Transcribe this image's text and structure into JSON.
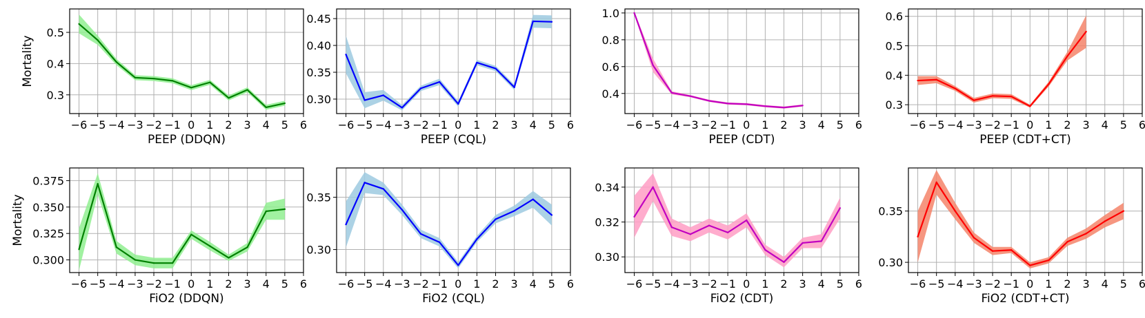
{
  "figure": {
    "ylabel_shared": "Mortality"
  },
  "chart_data": [
    {
      "type": "line",
      "xlabel": "PEEP (DDQN)",
      "ylabel": "Mortality",
      "x": [
        -6,
        -5,
        -4,
        -3,
        -2,
        -1,
        0,
        1,
        2,
        3,
        4,
        5
      ],
      "y": [
        0.527,
        0.475,
        0.405,
        0.355,
        0.352,
        0.345,
        0.323,
        0.34,
        0.29,
        0.316,
        0.26,
        0.273
      ],
      "band": [
        0.03,
        0.015,
        0.01,
        0.008,
        0.008,
        0.008,
        0.008,
        0.008,
        0.008,
        0.008,
        0.008,
        0.008
      ],
      "xlim": [
        -6.5,
        6
      ],
      "ylim": [
        0.24,
        0.575
      ],
      "xticks": [
        -6,
        -5,
        -4,
        -3,
        -2,
        -1,
        0,
        1,
        2,
        3,
        4,
        5,
        6
      ],
      "yticks": [
        0.3,
        0.4,
        0.5
      ],
      "ytick_labels": [
        "0.3",
        "0.4",
        "0.5"
      ],
      "line_color": "#008000",
      "band_color": "#90ee90"
    },
    {
      "type": "line",
      "xlabel": "PEEP (CQL)",
      "ylabel": "",
      "x": [
        -6,
        -5,
        -4,
        -3,
        -2,
        -1,
        0,
        1,
        2,
        3,
        4,
        5
      ],
      "y": [
        0.383,
        0.298,
        0.307,
        0.284,
        0.32,
        0.332,
        0.291,
        0.368,
        0.357,
        0.322,
        0.445,
        0.444
      ],
      "band": [
        0.035,
        0.015,
        0.01,
        0.005,
        0.005,
        0.006,
        0.005,
        0.005,
        0.005,
        0.005,
        0.012,
        0.012
      ],
      "xlim": [
        -6.5,
        6
      ],
      "ylim": [
        0.273,
        0.468
      ],
      "xticks": [
        -6,
        -5,
        -4,
        -3,
        -2,
        -1,
        0,
        1,
        2,
        3,
        4,
        5,
        6
      ],
      "yticks": [
        0.3,
        0.35,
        0.4,
        0.45
      ],
      "ytick_labels": [
        "0.30",
        "0.35",
        "0.40",
        "0.45"
      ],
      "line_color": "#0000ff",
      "band_color": "#9ecae1"
    },
    {
      "type": "line",
      "xlabel": "PEEP (CDT)",
      "ylabel": "",
      "x": [
        -6,
        -5,
        -4,
        -3,
        -2,
        -1,
        0,
        1,
        2,
        3
      ],
      "y": [
        1.0,
        0.61,
        0.405,
        0.38,
        0.345,
        0.325,
        0.32,
        0.305,
        0.295,
        0.31
      ],
      "band": [
        0.01,
        0.05,
        0.012,
        0.008,
        0.008,
        0.008,
        0.008,
        0.008,
        0.008,
        0.008
      ],
      "xlim": [
        -6.5,
        6
      ],
      "ylim": [
        0.25,
        1.03
      ],
      "xticks": [
        -6,
        -5,
        -4,
        -3,
        -2,
        -1,
        0,
        1,
        2,
        3,
        4,
        5,
        6
      ],
      "yticks": [
        0.4,
        0.6,
        0.8,
        1.0
      ],
      "ytick_labels": [
        "0.4",
        "0.6",
        "0.8",
        "1.0"
      ],
      "line_color": "#c000c0",
      "band_color": "#ff9ec4"
    },
    {
      "type": "line",
      "xlabel": "PEEP (CDT+CT)",
      "ylabel": "",
      "x": [
        -6,
        -5,
        -4,
        -3,
        -2,
        -1,
        0,
        1,
        2,
        3
      ],
      "y": [
        0.382,
        0.385,
        0.355,
        0.315,
        0.33,
        0.328,
        0.295,
        0.37,
        0.465,
        0.548
      ],
      "band": [
        0.015,
        0.012,
        0.008,
        0.008,
        0.008,
        0.008,
        0.005,
        0.008,
        0.015,
        0.055
      ],
      "xlim": [
        -6.5,
        6
      ],
      "ylim": [
        0.27,
        0.625
      ],
      "xticks": [
        -6,
        -5,
        -4,
        -3,
        -2,
        -1,
        0,
        1,
        2,
        3,
        4,
        5,
        6
      ],
      "yticks": [
        0.3,
        0.4,
        0.5,
        0.6
      ],
      "ytick_labels": [
        "0.3",
        "0.4",
        "0.5",
        "0.6"
      ],
      "line_color": "#ff0000",
      "band_color": "#f4846a"
    },
    {
      "type": "line",
      "xlabel": "FiO2 (DDQN)",
      "ylabel": "Mortality",
      "x": [
        -6,
        -5,
        -4,
        -3,
        -2,
        -1,
        0,
        1,
        2,
        3,
        4,
        5
      ],
      "y": [
        0.31,
        0.372,
        0.312,
        0.3,
        0.297,
        0.297,
        0.324,
        0.313,
        0.302,
        0.312,
        0.346,
        0.348
      ],
      "band": [
        0.02,
        0.01,
        0.006,
        0.005,
        0.005,
        0.005,
        0.004,
        0.004,
        0.003,
        0.004,
        0.008,
        0.01
      ],
      "xlim": [
        -6.5,
        6
      ],
      "ylim": [
        0.288,
        0.387
      ],
      "xticks": [
        -6,
        -5,
        -4,
        -3,
        -2,
        -1,
        0,
        1,
        2,
        3,
        4,
        5,
        6
      ],
      "yticks": [
        0.3,
        0.325,
        0.35,
        0.375
      ],
      "ytick_labels": [
        "0.300",
        "0.325",
        "0.350",
        "0.375"
      ],
      "line_color": "#008000",
      "band_color": "#90ee90"
    },
    {
      "type": "line",
      "xlabel": "FiO2 (CQL)",
      "ylabel": "",
      "x": [
        -6,
        -5,
        -4,
        -3,
        -2,
        -1,
        0,
        1,
        2,
        3,
        4,
        5
      ],
      "y": [
        0.324,
        0.364,
        0.358,
        0.338,
        0.315,
        0.307,
        0.285,
        0.31,
        0.329,
        0.337,
        0.348,
        0.333
      ],
      "band": [
        0.022,
        0.01,
        0.006,
        0.005,
        0.004,
        0.004,
        0.003,
        0.003,
        0.004,
        0.005,
        0.008,
        0.01
      ],
      "xlim": [
        -6.5,
        6
      ],
      "ylim": [
        0.278,
        0.378
      ],
      "xticks": [
        -6,
        -5,
        -4,
        -3,
        -2,
        -1,
        0,
        1,
        2,
        3,
        4,
        5,
        6
      ],
      "yticks": [
        0.3,
        0.35
      ],
      "ytick_labels": [
        "0.30",
        "0.35"
      ],
      "line_color": "#0000ff",
      "band_color": "#9ecae1"
    },
    {
      "type": "line",
      "xlabel": "FiO2 (CDT)",
      "ylabel": "",
      "x": [
        -6,
        -5,
        -4,
        -3,
        -2,
        -1,
        0,
        1,
        2,
        3,
        4,
        5
      ],
      "y": [
        0.323,
        0.34,
        0.317,
        0.313,
        0.318,
        0.314,
        0.321,
        0.304,
        0.297,
        0.308,
        0.309,
        0.328
      ],
      "band": [
        0.012,
        0.008,
        0.005,
        0.004,
        0.004,
        0.004,
        0.004,
        0.003,
        0.003,
        0.003,
        0.004,
        0.006
      ],
      "xlim": [
        -6.5,
        6
      ],
      "ylim": [
        0.291,
        0.351
      ],
      "xticks": [
        -6,
        -5,
        -4,
        -3,
        -2,
        -1,
        0,
        1,
        2,
        3,
        4,
        5,
        6
      ],
      "yticks": [
        0.3,
        0.32,
        0.34
      ],
      "ytick_labels": [
        "0.30",
        "0.32",
        "0.34"
      ],
      "line_color": "#c000c0",
      "band_color": "#ff9ec4"
    },
    {
      "type": "line",
      "xlabel": "FiO2 (CDT+CT)",
      "ylabel": "",
      "x": [
        -6,
        -5,
        -4,
        -3,
        -2,
        -1,
        0,
        1,
        2,
        3,
        4,
        5
      ],
      "y": [
        0.325,
        0.378,
        0.35,
        0.324,
        0.311,
        0.312,
        0.297,
        0.302,
        0.32,
        0.328,
        0.34,
        0.35
      ],
      "band": [
        0.025,
        0.012,
        0.008,
        0.005,
        0.004,
        0.003,
        0.003,
        0.003,
        0.004,
        0.005,
        0.006,
        0.008
      ],
      "xlim": [
        -6.5,
        6
      ],
      "ylim": [
        0.29,
        0.392
      ],
      "xticks": [
        -6,
        -5,
        -4,
        -3,
        -2,
        -1,
        0,
        1,
        2,
        3,
        4,
        5,
        6
      ],
      "yticks": [
        0.3,
        0.35
      ],
      "ytick_labels": [
        "0.30",
        "0.35"
      ],
      "line_color": "#ff0000",
      "band_color": "#f4846a"
    }
  ]
}
